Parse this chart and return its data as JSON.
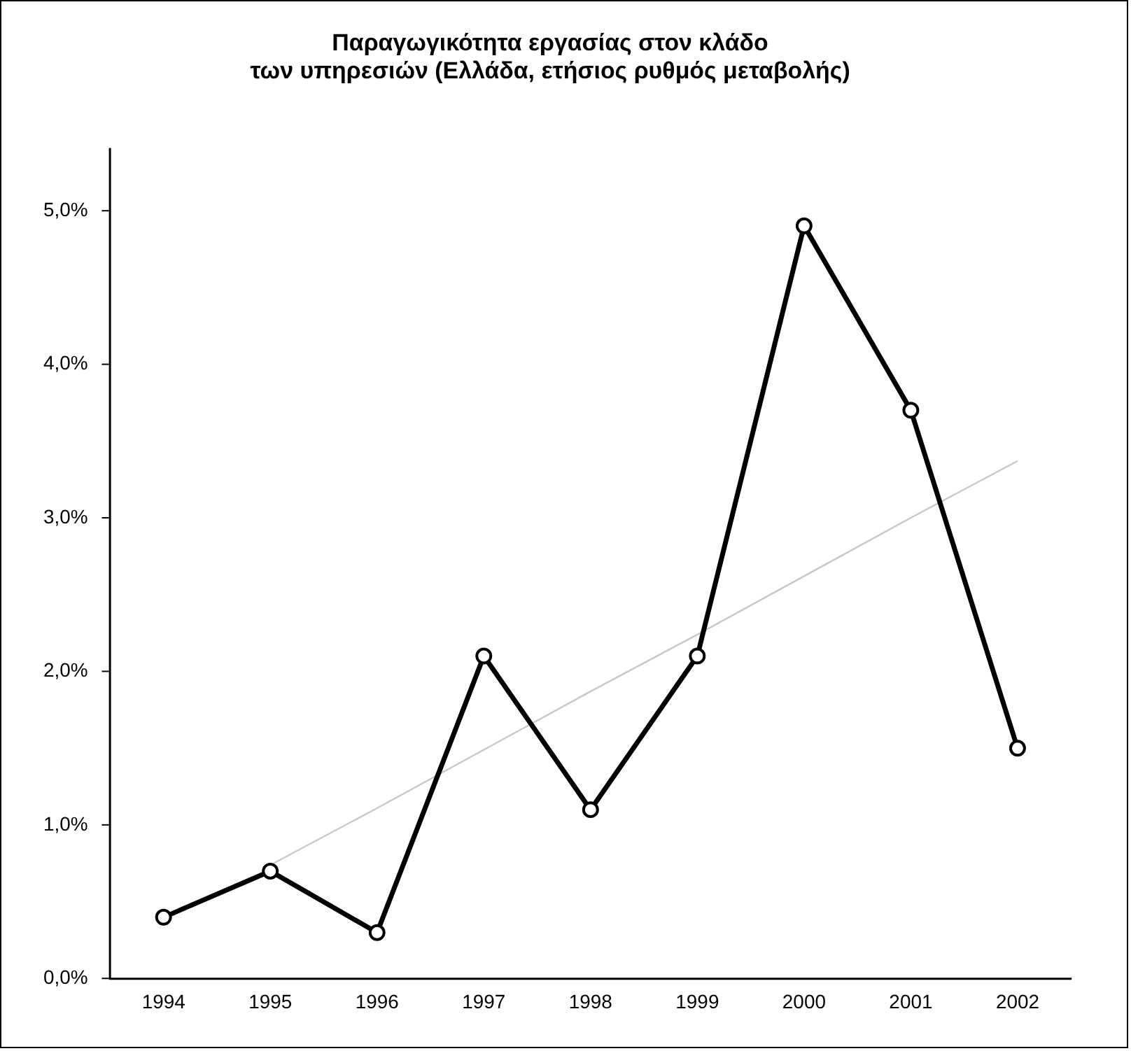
{
  "chart_data": {
    "type": "line",
    "title": "Παραγωγικότητα εργασίας στον κλάδο\nτων υπηρεσιών (Ελλάδα, ετήσιος ρυθμός μεταβολής)",
    "categories": [
      "1994",
      "1995",
      "1996",
      "1997",
      "1998",
      "1999",
      "2000",
      "2001",
      "2002"
    ],
    "series": [
      {
        "color": "#000000",
        "values": [
          0.4,
          0.7,
          0.3,
          2.1,
          1.1,
          2.1,
          4.9,
          3.7,
          1.5
        ],
        "marker": "circle"
      },
      {
        "type": "line",
        "color": "#c8c8c8",
        "values": [
          null,
          0.74,
          1.11,
          1.49,
          1.87,
          2.24,
          2.62,
          3.0,
          3.37
        ],
        "marker": "none"
      }
    ],
    "ylim": [
      0,
      5.4
    ],
    "yticks": [
      {
        "value": 0,
        "label": "0,0%"
      },
      {
        "value": 1,
        "label": "1,0%"
      },
      {
        "value": 2,
        "label": "2,0%"
      },
      {
        "value": 3,
        "label": "3,0%"
      },
      {
        "value": 4,
        "label": "4,0%"
      },
      {
        "value": 5,
        "label": "5,0%"
      }
    ],
    "grid": false,
    "legend": false
  }
}
